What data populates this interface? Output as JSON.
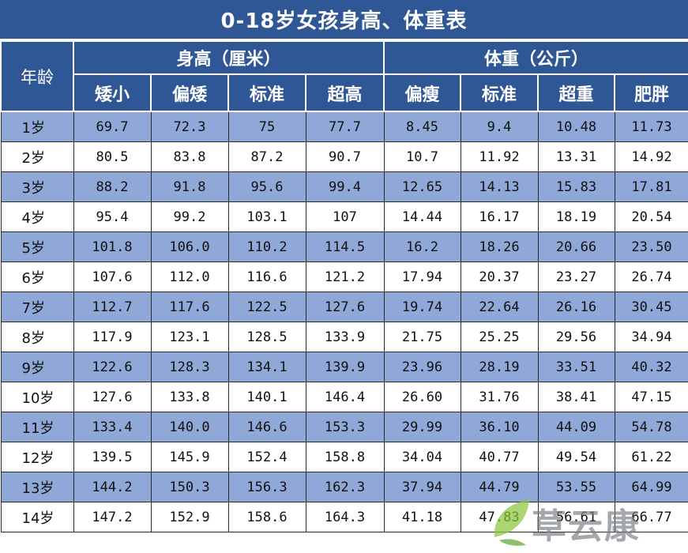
{
  "title": "0-18岁女孩身高、体重表",
  "header": {
    "age": "年龄",
    "height_group": "身高（厘米）",
    "weight_group": "体重（公斤）",
    "height_cols": [
      "矮小",
      "偏矮",
      "标准",
      "超高"
    ],
    "weight_cols": [
      "偏瘦",
      "标准",
      "超重",
      "肥胖"
    ]
  },
  "rows": [
    {
      "age": "1岁",
      "v": [
        "69.7",
        "72.3",
        "75",
        "77.7",
        "8.45",
        "9.4",
        "10.48",
        "11.73"
      ]
    },
    {
      "age": "2岁",
      "v": [
        "80.5",
        "83.8",
        "87.2",
        "90.7",
        "10.7",
        "11.92",
        "13.31",
        "14.92"
      ]
    },
    {
      "age": "3岁",
      "v": [
        "88.2",
        "91.8",
        "95.6",
        "99.4",
        "12.65",
        "14.13",
        "15.83",
        "17.81"
      ]
    },
    {
      "age": "4岁",
      "v": [
        "95.4",
        "99.2",
        "103.1",
        "107",
        "14.44",
        "16.17",
        "18.19",
        "20.54"
      ]
    },
    {
      "age": "5岁",
      "v": [
        "101.8",
        "106.0",
        "110.2",
        "114.5",
        "16.2",
        "18.26",
        "20.66",
        "23.50"
      ]
    },
    {
      "age": "6岁",
      "v": [
        "107.6",
        "112.0",
        "116.6",
        "121.2",
        "17.94",
        "20.37",
        "23.27",
        "26.74"
      ]
    },
    {
      "age": "7岁",
      "v": [
        "112.7",
        "117.6",
        "122.5",
        "127.6",
        "19.74",
        "22.64",
        "26.16",
        "30.45"
      ]
    },
    {
      "age": "8岁",
      "v": [
        "117.9",
        "123.1",
        "128.5",
        "133.9",
        "21.75",
        "25.25",
        "29.56",
        "34.94"
      ]
    },
    {
      "age": "9岁",
      "v": [
        "122.6",
        "128.3",
        "134.1",
        "139.9",
        "23.96",
        "28.19",
        "33.51",
        "40.32"
      ]
    },
    {
      "age": "10岁",
      "v": [
        "127.6",
        "133.8",
        "140.1",
        "146.4",
        "26.60",
        "31.76",
        "38.41",
        "47.15"
      ]
    },
    {
      "age": "11岁",
      "v": [
        "133.4",
        "140.0",
        "146.6",
        "153.3",
        "29.99",
        "36.10",
        "44.09",
        "54.78"
      ]
    },
    {
      "age": "12岁",
      "v": [
        "139.5",
        "145.9",
        "152.4",
        "158.8",
        "34.04",
        "40.77",
        "49.54",
        "61.22"
      ]
    },
    {
      "age": "13岁",
      "v": [
        "144.2",
        "150.3",
        "156.3",
        "162.3",
        "37.94",
        "44.79",
        "53.55",
        "64.99"
      ]
    },
    {
      "age": "14岁",
      "v": [
        "147.2",
        "152.9",
        "158.6",
        "164.3",
        "41.18",
        "47.83",
        "56.61",
        "66.77"
      ]
    }
  ],
  "watermark": {
    "text": "草云康",
    "leaf_color": "#8cc63f",
    "text_color": "#7a7f86"
  }
}
